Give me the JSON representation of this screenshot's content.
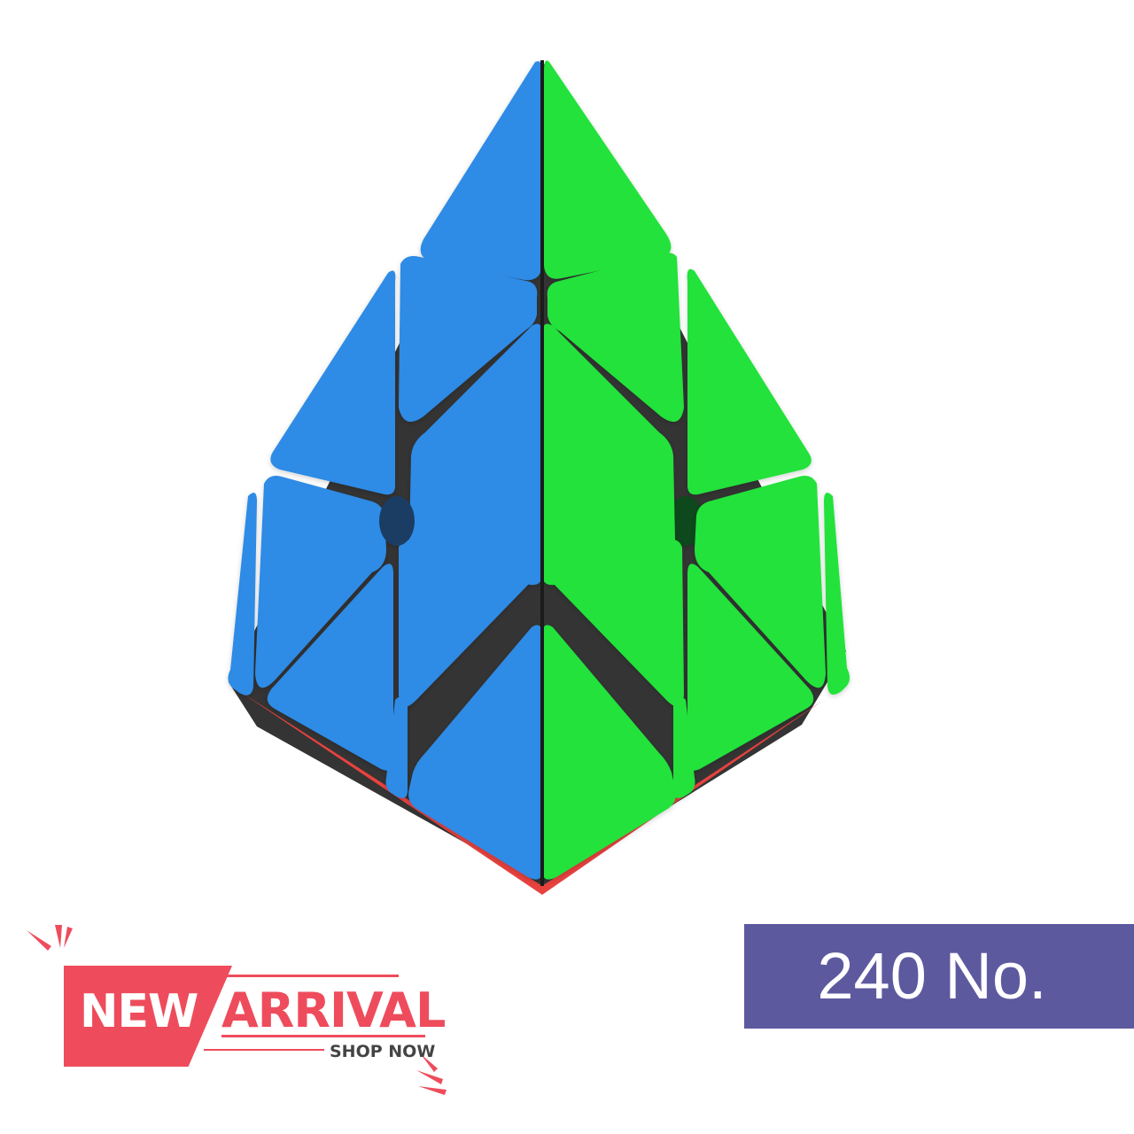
{
  "product": {
    "icon": "pyramid-puzzle-cube-icon",
    "face_colors": {
      "left": "#2f8be6",
      "right": "#22e23a",
      "bottom": "#e8423f"
    }
  },
  "badge": {
    "new_label": "NEW",
    "arrival_label": "ARRIVAL",
    "cta_label": "SHOP NOW",
    "accent_color": "#ee4c5c"
  },
  "model": {
    "label": "240 No.",
    "background_color": "#5d599f"
  }
}
